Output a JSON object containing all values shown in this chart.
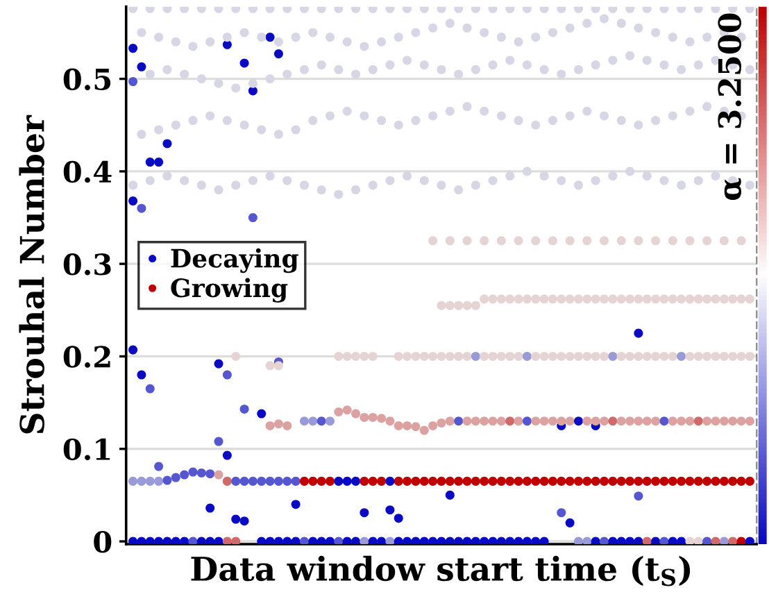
{
  "chart_data": {
    "type": "scatter",
    "xlabel": "Data window start time (t$_{S}$)",
    "ylabel": "Strouhal Number",
    "clabel": "α = 3.2500",
    "categories": [
      null,
      null,
      null,
      null,
      null,
      null,
      null,
      null,
      null,
      null,
      null,
      null,
      null,
      null,
      null,
      null,
      null,
      null,
      null,
      null,
      null,
      null,
      null,
      null,
      null,
      null,
      null,
      null,
      null,
      null,
      null,
      null,
      null,
      null,
      null,
      null,
      null,
      null,
      null,
      null,
      null,
      null,
      null,
      null,
      null,
      null,
      null,
      null,
      null,
      null,
      null,
      null,
      null,
      null,
      null,
      null,
      null,
      null,
      null,
      null,
      null,
      null,
      null,
      null,
      null,
      null,
      null,
      null,
      null,
      null,
      null,
      null,
      null
    ],
    "ylim": [
      -0.003,
      0.578
    ],
    "yticks": [
      0,
      0.1,
      0.2,
      0.3,
      0.4,
      0.5
    ],
    "tick_labels": "y",
    "grid": "y",
    "legend": "center left",
    "marker": "circle",
    "series": [
      {
        "name": "Decaying",
        "color": "#0a0ac4",
        "values": [
          0.533,
          0.513,
          0.41,
          0.41,
          0.43,
          null,
          null,
          null,
          null,
          0.036,
          0.192,
          0.537,
          0.024,
          0.517,
          0.487,
          0.138,
          0.545,
          0.527,
          null,
          0.04,
          null,
          null,
          null,
          null,
          null,
          null,
          null,
          0.031,
          null,
          null,
          0.034,
          0.025,
          null,
          null,
          null,
          null,
          null,
          0.05,
          null,
          null,
          null,
          null,
          null,
          null,
          null,
          null,
          null,
          null,
          null,
          null,
          0.125,
          0.02,
          null,
          null,
          0.125,
          null,
          null,
          null,
          null,
          0.225,
          null,
          null,
          null,
          null,
          null,
          null,
          null,
          null,
          null,
          null,
          null,
          null,
          null
        ]
      },
      {
        "name": "Growing",
        "color": "#c00000",
        "values": [
          null,
          null,
          null,
          null,
          null,
          null,
          null,
          null,
          null,
          null,
          null,
          null,
          null,
          null,
          null,
          null,
          null,
          null,
          null,
          null,
          null,
          null,
          null,
          null,
          null,
          null,
          null,
          null,
          null,
          null,
          null,
          0.065,
          0.065,
          0.065,
          0.065,
          0.065,
          0.065,
          0.065,
          0.065,
          0.065,
          0.065,
          0.065,
          0.065,
          0.065,
          0.065,
          0.065,
          0.065,
          0.065,
          0.065,
          0.065,
          0.065,
          0.065,
          0.065,
          0.065,
          0.065,
          0.065,
          0.065,
          0.065,
          0.065,
          0.065,
          0.065,
          0.065,
          0.065,
          0.065,
          0.065,
          0.065,
          0.065,
          0.065,
          0.065,
          0.065,
          0.065,
          0.065,
          0.065
        ]
      },
      {
        "color": "#5656d0",
        "values": [
          0.497,
          0.36,
          0.165,
          0.081,
          null,
          null,
          null,
          null,
          null,
          null,
          0.108,
          0.18,
          null,
          0.143,
          0.35,
          null,
          null,
          0.194,
          null,
          null,
          null,
          null,
          null,
          null,
          null,
          null,
          null,
          null,
          null,
          null,
          null,
          null,
          null,
          null,
          null,
          null,
          null,
          null,
          null,
          null,
          null,
          null,
          null,
          null,
          null,
          null,
          null,
          null,
          null,
          null,
          0.031,
          null,
          null,
          null,
          null,
          null,
          null,
          null,
          null,
          0.049,
          null,
          null,
          null,
          null,
          null,
          null,
          null,
          null,
          null,
          null,
          null,
          null,
          null
        ]
      },
      {
        "color": "#0a0ac4",
        "values": [
          0.368,
          0.18,
          null,
          null,
          null,
          null,
          null,
          null,
          null,
          null,
          null,
          0.093,
          null,
          0.022,
          null,
          null,
          null,
          null,
          null,
          null,
          null,
          null,
          null,
          null,
          null,
          null,
          null,
          null,
          null,
          null,
          null,
          null,
          null,
          null,
          null,
          null,
          null,
          null,
          null,
          null,
          null,
          null,
          null,
          null,
          null,
          null,
          null,
          null,
          null,
          null,
          null,
          null,
          null,
          null,
          null,
          null,
          null,
          null,
          null,
          null,
          null,
          null,
          null,
          null,
          null,
          null,
          null,
          null,
          null,
          null,
          null,
          null,
          null
        ]
      },
      {
        "color": "#0a0ac4",
        "values": [
          0.207,
          null,
          null,
          null,
          null,
          null,
          null,
          null,
          null,
          null,
          null,
          null,
          null,
          null,
          null,
          null,
          null,
          null,
          null,
          null,
          null,
          null,
          null,
          null,
          null,
          null,
          null,
          null,
          null,
          null,
          null,
          null,
          null,
          null,
          null,
          null,
          null,
          null,
          null,
          null,
          null,
          null,
          null,
          null,
          null,
          null,
          null,
          null,
          null,
          null,
          null,
          null,
          null,
          null,
          null,
          null,
          null,
          null,
          null,
          null,
          null,
          null,
          null,
          null,
          null,
          null,
          null,
          null,
          null,
          null,
          null,
          null,
          null
        ]
      },
      {
        "values": [
          0,
          0,
          0,
          0,
          0,
          0,
          0,
          0,
          0,
          0,
          0,
          0,
          0,
          null,
          null,
          0,
          0,
          0,
          0,
          0,
          0,
          0,
          0,
          0,
          0,
          0,
          0,
          0,
          0,
          0,
          0,
          0,
          0,
          0,
          0,
          0,
          0,
          0,
          0,
          0,
          0,
          0,
          0,
          0,
          0,
          0,
          0,
          0,
          0,
          null,
          null,
          null,
          0,
          0,
          0,
          0,
          0,
          0,
          0,
          0,
          0,
          0,
          0,
          0,
          0,
          0,
          0,
          0,
          0,
          0,
          0,
          0,
          0
        ],
        "colors": [
          "#0a0ac4",
          "#0a0ac4",
          "#0a0ac4",
          "#0a0ac4",
          "#0a0ac4",
          "#0a0ac4",
          "#0a0ac4",
          "#5656d0",
          "#0a0ac4",
          "#0a0ac4",
          "#0a0ac4",
          "#d06a6a",
          "#d06a6a",
          null,
          null,
          "#0a0ac4",
          "#0a0ac4",
          "#0a0ac4",
          "#0a0ac4",
          "#0a0ac4",
          "#5656d0",
          "#0a0ac4",
          "#0a0ac4",
          "#0a0ac4",
          "#5656d0",
          "#0a0ac4",
          "#0a0ac4",
          "#9a9ad8",
          "#0a0ac4",
          "#0a0ac4",
          "#9a9ad8",
          "#0a0ac4",
          "#0a0ac4",
          "#0a0ac4",
          "#0a0ac4",
          "#0a0ac4",
          "#0a0ac4",
          "#0a0ac4",
          "#0a0ac4",
          "#0a0ac4",
          "#0a0ac4",
          "#0a0ac4",
          "#0a0ac4",
          "#0a0ac4",
          "#0a0ac4",
          "#0a0ac4",
          "#0a0ac4",
          "#0a0ac4",
          "#0a0ac4",
          null,
          null,
          null,
          "#9a9ad8",
          "#9a9ad8",
          "#0a0ac4",
          "#5656d0",
          "#0a0ac4",
          "#0a0ac4",
          "#0a0ac4",
          "#0a0ac4",
          "#d06a6a",
          "#0a0ac4",
          "#5656d0",
          "#0a0ac4",
          "#0a0ac4",
          "#e6d4d4",
          "#e6d4d4",
          "#5656d0",
          "#d06a6a",
          "#9a9ad8",
          "#d06a6a",
          "#c00000",
          "#0a0ac4"
        ]
      },
      {
        "values": [
          0.065,
          0.065,
          0.065,
          0.065,
          0.066,
          0.069,
          0.072,
          0.075,
          0.074,
          0.073,
          0.072,
          0.065,
          0.065,
          0.065,
          0.065,
          0.065,
          0.065,
          0.065,
          0.065,
          0.065,
          0.065,
          0.065,
          0.065,
          0.065,
          0.065,
          0.065,
          0.065,
          0.065,
          0.065,
          0.065,
          0.065,
          null,
          null,
          null,
          null,
          null,
          null,
          null,
          null,
          null,
          null,
          null,
          null,
          null,
          null,
          null,
          null,
          null,
          null,
          null,
          null,
          null,
          null,
          null,
          null,
          null,
          null,
          null,
          null,
          null,
          null,
          null,
          null,
          null,
          null,
          null,
          null,
          null,
          null,
          null,
          null,
          null,
          null
        ],
        "colors": [
          "#9a9ad8",
          "#9a9ad8",
          "#9a9ad8",
          "#9a9ad8",
          "#5656d0",
          "#5656d0",
          "#5656d0",
          "#5656d0",
          "#5656d0",
          "#5656d0",
          "#dca2a2",
          "#d06a6a",
          "#5656d0",
          "#5656d0",
          "#5656d0",
          "#5656d0",
          "#5656d0",
          "#5656d0",
          "#5656d0",
          "#5656d0",
          "#c00000",
          "#c00000",
          "#c00000",
          "#c00000",
          "#0a0ac4",
          "#0a0ac4",
          "#0a0ac4",
          "#c00000",
          "#c00000",
          "#c00000",
          "#0a0ac4",
          null,
          null,
          null,
          null,
          null,
          null,
          null,
          null,
          null,
          null,
          null,
          null,
          null,
          null,
          null,
          null,
          null,
          null,
          null,
          null,
          null,
          null,
          null,
          null,
          null,
          null,
          null,
          null,
          null,
          null,
          null,
          null,
          null,
          null,
          null,
          null,
          null,
          null,
          null,
          null,
          null,
          null
        ]
      },
      {
        "values": [
          null,
          null,
          null,
          null,
          null,
          null,
          null,
          null,
          null,
          null,
          null,
          null,
          null,
          null,
          null,
          null,
          0.125,
          0.127,
          0.125,
          null,
          0.13,
          0.13,
          0.13,
          0.13,
          0.14,
          0.142,
          0.138,
          0.134,
          0.134,
          0.133,
          0.13,
          0.125,
          0.125,
          0.124,
          0.12,
          0.125,
          0.128,
          0.13,
          0.13,
          0.13,
          0.13,
          0.13,
          0.13,
          0.13,
          0.13,
          0.13,
          0.13,
          0.13,
          0.13,
          0.13,
          0.13,
          0.13,
          0.13,
          0.13,
          0.13,
          0.13,
          0.13,
          0.13,
          0.13,
          0.13,
          0.13,
          0.13,
          0.13,
          0.13,
          0.13,
          0.13,
          0.13,
          0.13,
          0.13,
          0.13,
          0.13,
          0.13,
          0.13
        ],
        "colors": [
          null,
          null,
          null,
          null,
          null,
          null,
          null,
          null,
          null,
          null,
          null,
          null,
          null,
          null,
          null,
          null,
          "#dca2a2",
          "#dca2a2",
          "#dca2a2",
          null,
          "#9a9ad8",
          "#9a9ad8",
          "#5656d0",
          "#9a9ad8",
          "#dca2a2",
          "#dca2a2",
          "#dca2a2",
          "#dca2a2",
          "#dca2a2",
          "#dca2a2",
          "#dca2a2",
          "#dca2a2",
          "#dca2a2",
          "#dca2a2",
          "#dca2a2",
          "#dca2a2",
          "#dca2a2",
          "#dca2a2",
          "#5656d0",
          "#dca2a2",
          "#dca2a2",
          "#dca2a2",
          "#dca2a2",
          "#dca2a2",
          "#d06a6a",
          "#dca2a2",
          "#5656d0",
          "#dca2a2",
          "#dca2a2",
          "#dca2a2",
          "#dca2a2",
          "#dca2a2",
          "#0a0ac4",
          "#dca2a2",
          "#dca2a2",
          "#dca2a2",
          "#d06a6a",
          "#dca2a2",
          "#dca2a2",
          "#dca2a2",
          "#dca2a2",
          "#dca2a2",
          "#5656d0",
          "#dca2a2",
          "#dca2a2",
          "#dca2a2",
          "#d06a6a",
          "#dca2a2",
          "#dca2a2",
          "#dca2a2",
          "#dca2a2",
          "#dca2a2",
          "#dca2a2"
        ]
      },
      {
        "values": [
          null,
          null,
          null,
          null,
          null,
          null,
          null,
          null,
          null,
          null,
          null,
          null,
          0.2,
          null,
          null,
          null,
          0.19,
          0.19,
          null,
          null,
          null,
          null,
          null,
          null,
          0.2,
          0.2,
          0.2,
          0.2,
          0.2,
          null,
          null,
          0.2,
          0.2,
          0.2,
          0.2,
          0.2,
          0.2,
          0.2,
          0.2,
          0.2,
          0.2,
          0.2,
          0.2,
          0.2,
          0.2,
          0.2,
          0.2,
          0.2,
          0.2,
          0.2,
          0.2,
          0.2,
          0.2,
          0.2,
          0.2,
          0.2,
          0.2,
          0.2,
          0.2,
          0.2,
          0.2,
          0.2,
          0.2,
          0.2,
          0.2,
          0.2,
          0.2,
          0.2,
          0.2,
          0.2,
          0.2,
          0.2,
          0.2
        ],
        "colors": [
          null,
          null,
          null,
          null,
          null,
          null,
          null,
          null,
          null,
          null,
          null,
          null,
          "#e6d4d4",
          null,
          null,
          null,
          "#e6d4d4",
          "#e6d4d4",
          null,
          null,
          null,
          null,
          null,
          null,
          "#e6d4d4",
          "#e6d4d4",
          "#e6d4d4",
          "#e6d4d4",
          "#e6d4d4",
          null,
          null,
          "#e6d4d4",
          "#e6d4d4",
          "#e6d4d4",
          "#e6d4d4",
          "#e6d4d4",
          "#e6d4d4",
          "#e6d4d4",
          "#e6d4d4",
          "#e6d4d4",
          "#9a9ad8",
          "#e6d4d4",
          "#e6d4d4",
          "#e6d4d4",
          "#e6d4d4",
          "#e6d4d4",
          "#9a9ad8",
          "#e6d4d4",
          "#e6d4d4",
          "#e6d4d4",
          "#e6d4d4",
          "#e6d4d4",
          "#e6d4d4",
          "#e6d4d4",
          "#e6d4d4",
          "#e6d4d4",
          "#9a9ad8",
          "#e6d4d4",
          "#e6d4d4",
          "#e6d4d4",
          "#e6d4d4",
          "#e6d4d4",
          "#e6d4d4",
          "#e6d4d4",
          "#9a9ad8",
          "#e6d4d4",
          "#e6d4d4",
          "#e6d4d4",
          "#e6d4d4",
          "#e6d4d4",
          "#e6d4d4",
          "#e6d4d4",
          "#e6d4d4"
        ]
      },
      {
        "color": "#e6d4d4",
        "values": [
          null,
          null,
          null,
          null,
          null,
          null,
          null,
          null,
          null,
          null,
          null,
          null,
          null,
          null,
          null,
          null,
          null,
          null,
          null,
          null,
          null,
          null,
          null,
          null,
          null,
          null,
          null,
          null,
          null,
          null,
          null,
          null,
          null,
          null,
          null,
          null,
          0.255,
          0.255,
          0.255,
          0.255,
          0.255,
          0.262,
          0.262,
          0.262,
          0.262,
          0.262,
          0.262,
          0.262,
          0.262,
          0.262,
          0.262,
          0.262,
          0.262,
          0.262,
          0.262,
          0.262,
          0.262,
          0.262,
          0.262,
          0.262,
          0.262,
          0.262,
          0.262,
          0.262,
          0.262,
          0.262,
          0.262,
          0.262,
          0.262,
          0.262,
          0.262,
          0.262,
          0.262
        ]
      },
      {
        "color": "#e6d4d4",
        "values": [
          null,
          null,
          null,
          null,
          null,
          null,
          null,
          null,
          null,
          null,
          null,
          null,
          null,
          null,
          null,
          null,
          null,
          null,
          null,
          null,
          null,
          null,
          null,
          null,
          null,
          null,
          null,
          null,
          null,
          null,
          null,
          null,
          null,
          null,
          null,
          0.325,
          null,
          0.325,
          null,
          0.325,
          null,
          0.325,
          null,
          0.325,
          null,
          0.325,
          null,
          0.325,
          null,
          0.325,
          null,
          0.325,
          null,
          0.325,
          null,
          0.325,
          null,
          0.325,
          null,
          0.325,
          null,
          0.325,
          null,
          0.325,
          null,
          0.325,
          null,
          0.325,
          null,
          0.325,
          null,
          0.325,
          null
        ]
      },
      {
        "color": "#d6d6e4",
        "values": [
          0.385,
          null,
          0.39,
          null,
          0.395,
          null,
          0.39,
          null,
          0.385,
          null,
          0.38,
          null,
          0.385,
          null,
          0.39,
          null,
          0.395,
          null,
          0.39,
          null,
          0.385,
          null,
          0.38,
          null,
          0.375,
          null,
          0.38,
          null,
          0.385,
          null,
          0.39,
          null,
          0.395,
          null,
          0.39,
          null,
          0.385,
          null,
          0.38,
          null,
          0.385,
          null,
          0.39,
          null,
          0.395,
          null,
          0.4,
          null,
          0.395,
          null,
          0.39,
          null,
          0.385,
          null,
          0.39,
          null,
          0.395,
          null,
          0.4,
          null,
          0.395,
          null,
          0.39,
          null,
          0.385,
          null,
          0.39,
          null,
          0.395,
          null,
          0.39,
          null,
          0.385
        ]
      },
      {
        "color": "#d6d6e4",
        "values": [
          null,
          0.44,
          null,
          0.445,
          null,
          0.45,
          null,
          0.455,
          null,
          0.46,
          null,
          0.455,
          null,
          0.45,
          null,
          0.445,
          null,
          0.44,
          null,
          0.445,
          null,
          0.455,
          null,
          0.46,
          null,
          0.465,
          null,
          0.46,
          null,
          0.455,
          null,
          0.45,
          null,
          0.455,
          null,
          0.46,
          null,
          0.465,
          null,
          0.47,
          null,
          0.465,
          null,
          0.46,
          null,
          0.455,
          null,
          0.45,
          null,
          0.455,
          null,
          0.46,
          null,
          0.465,
          null,
          0.46,
          null,
          0.455,
          null,
          0.45,
          null,
          0.455,
          null,
          0.46,
          null,
          0.465,
          null,
          0.47,
          null,
          0.465,
          null,
          0.46,
          null
        ]
      },
      {
        "color": "#d6d6e4",
        "values": [
          null,
          null,
          0.505,
          null,
          0.51,
          null,
          0.505,
          null,
          0.5,
          null,
          0.495,
          null,
          0.49,
          null,
          0.495,
          null,
          0.5,
          null,
          0.505,
          null,
          0.51,
          null,
          0.515,
          null,
          0.51,
          null,
          0.505,
          null,
          0.51,
          null,
          0.515,
          null,
          0.52,
          null,
          0.515,
          null,
          0.51,
          null,
          0.505,
          null,
          0.51,
          null,
          0.515,
          null,
          0.52,
          null,
          0.515,
          null,
          0.51,
          null,
          0.505,
          null,
          0.51,
          null,
          0.515,
          null,
          0.52,
          null,
          0.525,
          null,
          0.52,
          null,
          0.515,
          null,
          0.51,
          null,
          0.515,
          null,
          0.52,
          null,
          0.515,
          null,
          0.51
        ]
      },
      {
        "color": "#d6d6e4",
        "values": [
          null,
          0.55,
          null,
          0.545,
          null,
          0.54,
          null,
          0.535,
          null,
          0.54,
          null,
          0.545,
          null,
          0.55,
          null,
          0.545,
          null,
          0.54,
          null,
          0.545,
          null,
          0.55,
          null,
          0.545,
          null,
          0.54,
          null,
          0.535,
          null,
          0.54,
          null,
          0.545,
          null,
          0.55,
          null,
          0.555,
          null,
          0.56,
          null,
          0.555,
          null,
          0.55,
          null,
          0.545,
          null,
          0.54,
          null,
          0.545,
          null,
          0.55,
          null,
          0.555,
          null,
          0.56,
          null,
          0.565,
          null,
          0.56,
          null,
          0.555,
          null,
          0.55,
          null,
          0.545,
          null,
          0.54,
          null,
          0.545,
          null,
          0.55,
          null,
          0.545,
          null
        ]
      },
      {
        "color": "#d6d6e4",
        "values": [
          0.576,
          null,
          0.576,
          null,
          0.576,
          null,
          0.576,
          null,
          0.576,
          null,
          0.576,
          null,
          0.576,
          null,
          0.576,
          null,
          0.576,
          null,
          0.576,
          null,
          0.576,
          null,
          0.576,
          null,
          0.576,
          null,
          0.576,
          null,
          0.576,
          null,
          0.576,
          null,
          0.576,
          null,
          0.576,
          null,
          0.576,
          null,
          0.576,
          null,
          0.576,
          null,
          0.576,
          null,
          0.576,
          null,
          0.576,
          null,
          0.576,
          null,
          0.576,
          null,
          0.576,
          null,
          0.576,
          null,
          0.576,
          null,
          0.576,
          null,
          0.576,
          null,
          0.576,
          null,
          0.576,
          null,
          0.576,
          null,
          0.576,
          null,
          0.576,
          null,
          0.576
        ]
      }
    ]
  }
}
